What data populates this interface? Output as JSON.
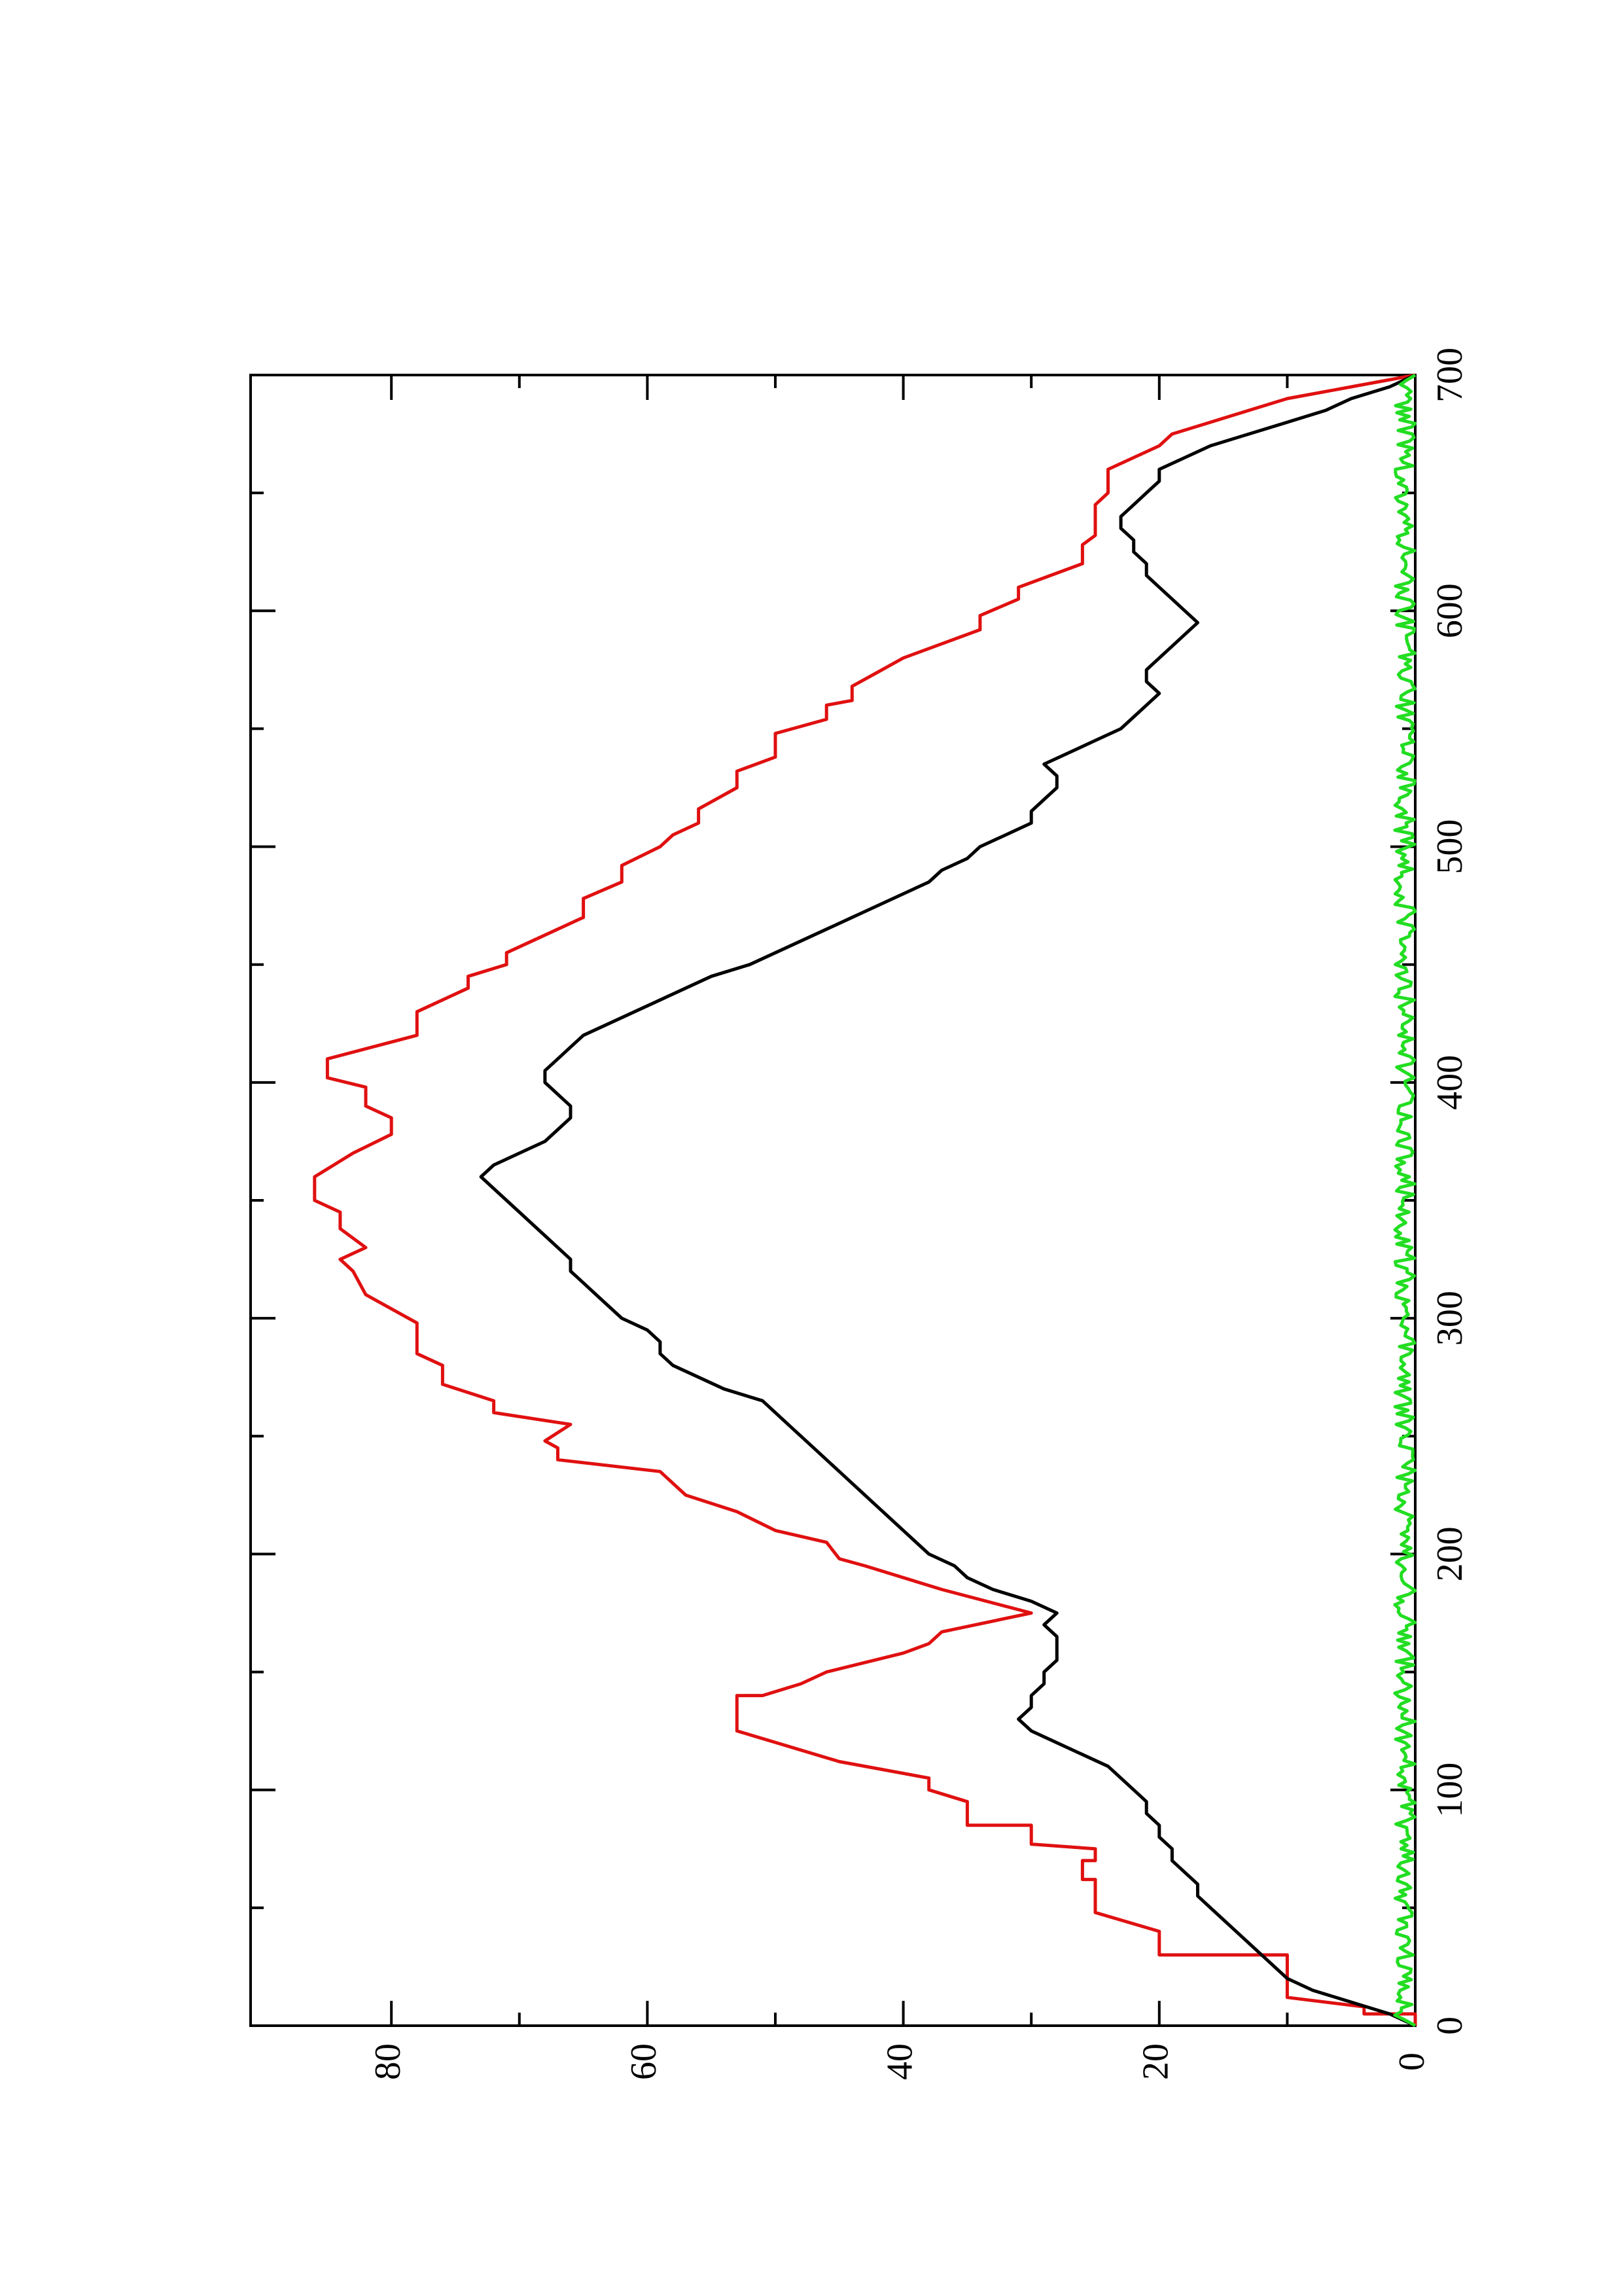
{
  "chart_data": {
    "type": "line",
    "orientation": "rotated-90-ccw",
    "title": "",
    "xlabel": "",
    "ylabel": "",
    "xlim": [
      0,
      700
    ],
    "ylim": [
      0,
      91
    ],
    "grid": false,
    "x_ticks": [
      0,
      100,
      200,
      300,
      400,
      500,
      600,
      700
    ],
    "x_minor_ticks": [
      50,
      150,
      250,
      350,
      450,
      550,
      650
    ],
    "y_ticks": [
      0,
      20,
      40,
      60,
      80
    ],
    "y_minor_ticks": [
      10,
      30,
      50,
      70
    ],
    "series": [
      {
        "color": "#e01010",
        "style": "step",
        "points": [
          [
            0,
            0
          ],
          [
            5,
            0
          ],
          [
            5,
            4
          ],
          [
            8,
            4
          ],
          [
            12,
            10
          ],
          [
            30,
            10
          ],
          [
            30,
            20
          ],
          [
            40,
            20
          ],
          [
            48,
            25
          ],
          [
            62,
            25
          ],
          [
            62,
            26
          ],
          [
            70,
            26
          ],
          [
            70,
            25
          ],
          [
            75,
            25
          ],
          [
            77,
            30
          ],
          [
            85,
            30
          ],
          [
            85,
            35
          ],
          [
            95,
            35
          ],
          [
            100,
            38
          ],
          [
            105,
            38
          ],
          [
            112,
            45
          ],
          [
            125,
            53
          ],
          [
            140,
            53
          ],
          [
            140,
            51
          ],
          [
            145,
            48
          ],
          [
            150,
            46
          ],
          [
            158,
            40
          ],
          [
            162,
            38
          ],
          [
            167,
            37
          ],
          [
            175,
            30
          ],
          [
            185,
            37
          ],
          [
            195,
            43
          ],
          [
            198,
            45
          ],
          [
            205,
            46
          ],
          [
            210,
            50
          ],
          [
            218,
            53
          ],
          [
            225,
            57
          ],
          [
            235,
            59
          ],
          [
            240,
            67
          ],
          [
            245,
            67
          ],
          [
            248,
            68
          ],
          [
            255,
            66
          ],
          [
            260,
            72
          ],
          [
            265,
            72
          ],
          [
            272,
            76
          ],
          [
            280,
            76
          ],
          [
            285,
            78
          ],
          [
            292,
            78
          ],
          [
            298,
            78
          ],
          [
            310,
            82
          ],
          [
            320,
            83
          ],
          [
            325,
            84
          ],
          [
            330,
            82
          ],
          [
            338,
            84
          ],
          [
            345,
            84
          ],
          [
            350,
            86
          ],
          [
            360,
            86
          ],
          [
            370,
            83
          ],
          [
            378,
            80
          ],
          [
            385,
            80
          ],
          [
            390,
            82
          ],
          [
            398,
            82
          ],
          [
            402,
            85
          ],
          [
            410,
            85
          ],
          [
            420,
            78
          ],
          [
            430,
            78
          ],
          [
            440,
            74
          ],
          [
            445,
            74
          ],
          [
            450,
            71
          ],
          [
            455,
            71
          ],
          [
            460,
            69
          ],
          [
            470,
            65
          ],
          [
            478,
            65
          ],
          [
            485,
            62
          ],
          [
            492,
            62
          ],
          [
            500,
            59
          ],
          [
            505,
            58
          ],
          [
            510,
            56
          ],
          [
            516,
            56
          ],
          [
            525,
            53
          ],
          [
            532,
            53
          ],
          [
            538,
            50
          ],
          [
            548,
            50
          ],
          [
            554,
            46
          ],
          [
            560,
            46
          ],
          [
            562,
            44
          ],
          [
            568,
            44
          ],
          [
            574,
            42
          ],
          [
            580,
            40
          ],
          [
            586,
            37
          ],
          [
            592,
            34
          ],
          [
            598,
            34
          ],
          [
            605,
            31
          ],
          [
            610,
            31
          ],
          [
            620,
            26
          ],
          [
            628,
            26
          ],
          [
            632,
            25
          ],
          [
            640,
            25
          ],
          [
            645,
            25
          ],
          [
            650,
            24
          ],
          [
            660,
            24
          ],
          [
            665,
            22
          ],
          [
            670,
            20
          ],
          [
            675,
            19
          ],
          [
            680,
            16
          ],
          [
            685,
            13
          ],
          [
            690,
            10
          ],
          [
            695,
            5
          ],
          [
            700,
            0
          ]
        ]
      },
      {
        "color": "#000000",
        "style": "line",
        "points": [
          [
            0,
            0
          ],
          [
            5,
            2
          ],
          [
            10,
            5
          ],
          [
            15,
            8
          ],
          [
            20,
            10
          ],
          [
            25,
            11
          ],
          [
            30,
            12
          ],
          [
            35,
            13
          ],
          [
            40,
            14
          ],
          [
            45,
            15
          ],
          [
            50,
            16
          ],
          [
            55,
            17
          ],
          [
            60,
            17
          ],
          [
            65,
            18
          ],
          [
            70,
            19
          ],
          [
            75,
            19
          ],
          [
            80,
            20
          ],
          [
            85,
            20
          ],
          [
            90,
            21
          ],
          [
            95,
            21
          ],
          [
            100,
            22
          ],
          [
            105,
            23
          ],
          [
            110,
            24
          ],
          [
            115,
            26
          ],
          [
            120,
            28
          ],
          [
            125,
            30
          ],
          [
            130,
            31
          ],
          [
            135,
            30
          ],
          [
            140,
            30
          ],
          [
            145,
            29
          ],
          [
            150,
            29
          ],
          [
            155,
            28
          ],
          [
            160,
            28
          ],
          [
            165,
            28
          ],
          [
            170,
            29
          ],
          [
            175,
            28
          ],
          [
            180,
            30
          ],
          [
            185,
            33
          ],
          [
            190,
            35
          ],
          [
            195,
            36
          ],
          [
            200,
            38
          ],
          [
            205,
            39
          ],
          [
            210,
            40
          ],
          [
            215,
            41
          ],
          [
            220,
            42
          ],
          [
            225,
            43
          ],
          [
            230,
            44
          ],
          [
            235,
            45
          ],
          [
            240,
            46
          ],
          [
            245,
            47
          ],
          [
            250,
            48
          ],
          [
            255,
            49
          ],
          [
            260,
            50
          ],
          [
            265,
            51
          ],
          [
            270,
            54
          ],
          [
            275,
            56
          ],
          [
            280,
            58
          ],
          [
            285,
            59
          ],
          [
            290,
            59
          ],
          [
            295,
            60
          ],
          [
            300,
            62
          ],
          [
            305,
            63
          ],
          [
            310,
            64
          ],
          [
            315,
            65
          ],
          [
            320,
            66
          ],
          [
            325,
            66
          ],
          [
            330,
            67
          ],
          [
            335,
            68
          ],
          [
            340,
            69
          ],
          [
            345,
            70
          ],
          [
            350,
            71
          ],
          [
            355,
            72
          ],
          [
            360,
            73
          ],
          [
            365,
            72
          ],
          [
            370,
            70
          ],
          [
            375,
            68
          ],
          [
            380,
            67
          ],
          [
            385,
            66
          ],
          [
            390,
            66
          ],
          [
            395,
            67
          ],
          [
            400,
            68
          ],
          [
            405,
            68
          ],
          [
            410,
            67
          ],
          [
            415,
            66
          ],
          [
            420,
            65
          ],
          [
            425,
            63
          ],
          [
            430,
            61
          ],
          [
            435,
            59
          ],
          [
            440,
            57
          ],
          [
            445,
            55
          ],
          [
            450,
            52
          ],
          [
            455,
            50
          ],
          [
            460,
            48
          ],
          [
            465,
            46
          ],
          [
            470,
            44
          ],
          [
            475,
            42
          ],
          [
            480,
            40
          ],
          [
            485,
            38
          ],
          [
            490,
            37
          ],
          [
            495,
            35
          ],
          [
            500,
            34
          ],
          [
            505,
            32
          ],
          [
            510,
            30
          ],
          [
            515,
            30
          ],
          [
            520,
            29
          ],
          [
            525,
            28
          ],
          [
            530,
            28
          ],
          [
            535,
            29
          ],
          [
            540,
            27
          ],
          [
            545,
            25
          ],
          [
            550,
            23
          ],
          [
            555,
            22
          ],
          [
            560,
            21
          ],
          [
            565,
            20
          ],
          [
            570,
            21
          ],
          [
            575,
            21
          ],
          [
            580,
            20
          ],
          [
            585,
            19
          ],
          [
            590,
            18
          ],
          [
            595,
            17
          ],
          [
            600,
            18
          ],
          [
            605,
            19
          ],
          [
            610,
            20
          ],
          [
            615,
            21
          ],
          [
            620,
            21
          ],
          [
            625,
            22
          ],
          [
            630,
            22
          ],
          [
            635,
            23
          ],
          [
            640,
            23
          ],
          [
            645,
            22
          ],
          [
            650,
            21
          ],
          [
            655,
            20
          ],
          [
            660,
            20
          ],
          [
            665,
            18
          ],
          [
            670,
            16
          ],
          [
            675,
            13
          ],
          [
            680,
            10
          ],
          [
            685,
            7
          ],
          [
            690,
            5
          ],
          [
            695,
            2
          ],
          [
            700,
            0
          ]
        ]
      },
      {
        "color": "#22dd22",
        "style": "line",
        "mean_level": 0.8,
        "noise_amplitude": 0.8
      }
    ]
  }
}
